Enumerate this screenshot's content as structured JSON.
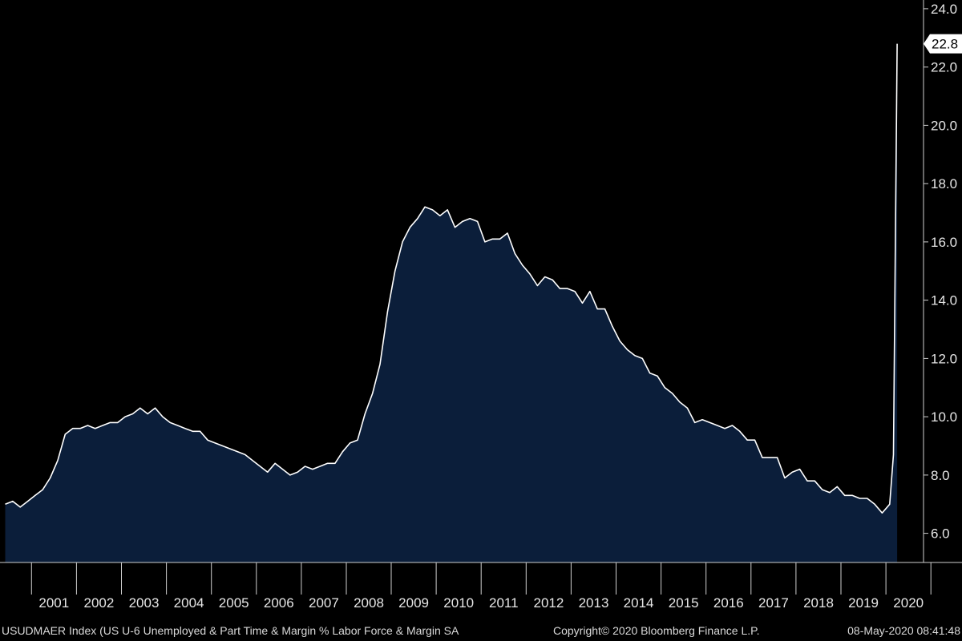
{
  "colors": {
    "background": "#000000",
    "area_fill": "#0b1e3a",
    "line": "#ffffff",
    "axis": "#cfcfcf",
    "text": "#e6e6e6",
    "last_value_box_bg": "#ffffff",
    "last_value_box_text": "#000000"
  },
  "footer": {
    "description": "USUDMAER Index (US U-6 Unemployed & Part Time & Margin % Labor Force & Margin SA",
    "copyright": "Copyright© 2020 Bloomberg Finance L.P.",
    "timestamp": "08-May-2020 08:41:48"
  },
  "chart_data": {
    "type": "area",
    "title": "",
    "xlabel": "",
    "ylabel": "",
    "y_axis_position": "right",
    "ylim": [
      5.0,
      24.3
    ],
    "yticks": [
      6.0,
      8.0,
      10.0,
      12.0,
      14.0,
      16.0,
      18.0,
      20.0,
      22.0,
      24.0
    ],
    "ytick_labels": [
      "6.0",
      "8.0",
      "10.0",
      "12.0",
      "14.0",
      "16.0",
      "18.0",
      "20.0",
      "22.0",
      "24.0"
    ],
    "x_year_labels": [
      "2001",
      "2002",
      "2003",
      "2004",
      "2005",
      "2006",
      "2007",
      "2008",
      "2009",
      "2010",
      "2011",
      "2012",
      "2013",
      "2014",
      "2015",
      "2016",
      "2017",
      "2018",
      "2019",
      "2020"
    ],
    "last_value_label": "22.8",
    "series": [
      {
        "name": "USUDMAER Index",
        "points": [
          [
            "2000-06",
            7.0
          ],
          [
            "2000-08",
            7.1
          ],
          [
            "2000-10",
            6.9
          ],
          [
            "2000-12",
            7.1
          ],
          [
            "2001-02",
            7.3
          ],
          [
            "2001-04",
            7.5
          ],
          [
            "2001-06",
            7.9
          ],
          [
            "2001-08",
            8.5
          ],
          [
            "2001-10",
            9.4
          ],
          [
            "2001-12",
            9.6
          ],
          [
            "2002-02",
            9.6
          ],
          [
            "2002-04",
            9.7
          ],
          [
            "2002-06",
            9.6
          ],
          [
            "2002-08",
            9.7
          ],
          [
            "2002-10",
            9.8
          ],
          [
            "2002-12",
            9.8
          ],
          [
            "2003-02",
            10.0
          ],
          [
            "2003-04",
            10.1
          ],
          [
            "2003-06",
            10.3
          ],
          [
            "2003-08",
            10.1
          ],
          [
            "2003-10",
            10.3
          ],
          [
            "2003-12",
            10.0
          ],
          [
            "2004-02",
            9.8
          ],
          [
            "2004-04",
            9.7
          ],
          [
            "2004-06",
            9.6
          ],
          [
            "2004-08",
            9.5
          ],
          [
            "2004-10",
            9.5
          ],
          [
            "2004-12",
            9.2
          ],
          [
            "2005-02",
            9.1
          ],
          [
            "2005-04",
            9.0
          ],
          [
            "2005-06",
            8.9
          ],
          [
            "2005-08",
            8.8
          ],
          [
            "2005-10",
            8.7
          ],
          [
            "2005-12",
            8.5
          ],
          [
            "2006-02",
            8.3
          ],
          [
            "2006-04",
            8.1
          ],
          [
            "2006-06",
            8.4
          ],
          [
            "2006-08",
            8.2
          ],
          [
            "2006-10",
            8.0
          ],
          [
            "2006-12",
            8.1
          ],
          [
            "2007-02",
            8.3
          ],
          [
            "2007-04",
            8.2
          ],
          [
            "2007-06",
            8.3
          ],
          [
            "2007-08",
            8.4
          ],
          [
            "2007-10",
            8.4
          ],
          [
            "2007-12",
            8.8
          ],
          [
            "2008-02",
            9.1
          ],
          [
            "2008-04",
            9.2
          ],
          [
            "2008-06",
            10.1
          ],
          [
            "2008-08",
            10.8
          ],
          [
            "2008-10",
            11.8
          ],
          [
            "2008-12",
            13.6
          ],
          [
            "2009-02",
            15.0
          ],
          [
            "2009-04",
            16.0
          ],
          [
            "2009-06",
            16.5
          ],
          [
            "2009-08",
            16.8
          ],
          [
            "2009-10",
            17.2
          ],
          [
            "2009-12",
            17.1
          ],
          [
            "2010-02",
            16.9
          ],
          [
            "2010-04",
            17.1
          ],
          [
            "2010-06",
            16.5
          ],
          [
            "2010-08",
            16.7
          ],
          [
            "2010-10",
            16.8
          ],
          [
            "2010-12",
            16.7
          ],
          [
            "2011-02",
            16.0
          ],
          [
            "2011-04",
            16.1
          ],
          [
            "2011-06",
            16.1
          ],
          [
            "2011-08",
            16.3
          ],
          [
            "2011-10",
            15.6
          ],
          [
            "2011-12",
            15.2
          ],
          [
            "2012-02",
            14.9
          ],
          [
            "2012-04",
            14.5
          ],
          [
            "2012-06",
            14.8
          ],
          [
            "2012-08",
            14.7
          ],
          [
            "2012-10",
            14.4
          ],
          [
            "2012-12",
            14.4
          ],
          [
            "2013-02",
            14.3
          ],
          [
            "2013-04",
            13.9
          ],
          [
            "2013-06",
            14.3
          ],
          [
            "2013-08",
            13.7
          ],
          [
            "2013-10",
            13.7
          ],
          [
            "2013-12",
            13.1
          ],
          [
            "2014-02",
            12.6
          ],
          [
            "2014-04",
            12.3
          ],
          [
            "2014-06",
            12.1
          ],
          [
            "2014-08",
            12.0
          ],
          [
            "2014-10",
            11.5
          ],
          [
            "2014-12",
            11.4
          ],
          [
            "2015-02",
            11.0
          ],
          [
            "2015-04",
            10.8
          ],
          [
            "2015-06",
            10.5
          ],
          [
            "2015-08",
            10.3
          ],
          [
            "2015-10",
            9.8
          ],
          [
            "2015-12",
            9.9
          ],
          [
            "2016-02",
            9.8
          ],
          [
            "2016-04",
            9.7
          ],
          [
            "2016-06",
            9.6
          ],
          [
            "2016-08",
            9.7
          ],
          [
            "2016-10",
            9.5
          ],
          [
            "2016-12",
            9.2
          ],
          [
            "2017-02",
            9.2
          ],
          [
            "2017-04",
            8.6
          ],
          [
            "2017-06",
            8.6
          ],
          [
            "2017-08",
            8.6
          ],
          [
            "2017-10",
            7.9
          ],
          [
            "2017-12",
            8.1
          ],
          [
            "2018-02",
            8.2
          ],
          [
            "2018-04",
            7.8
          ],
          [
            "2018-06",
            7.8
          ],
          [
            "2018-08",
            7.5
          ],
          [
            "2018-10",
            7.4
          ],
          [
            "2018-12",
            7.6
          ],
          [
            "2019-02",
            7.3
          ],
          [
            "2019-04",
            7.3
          ],
          [
            "2019-06",
            7.2
          ],
          [
            "2019-08",
            7.2
          ],
          [
            "2019-10",
            7.0
          ],
          [
            "2019-12",
            6.7
          ],
          [
            "2020-02",
            7.0
          ],
          [
            "2020-03",
            8.7
          ],
          [
            "2020-04",
            22.8
          ]
        ]
      }
    ]
  }
}
